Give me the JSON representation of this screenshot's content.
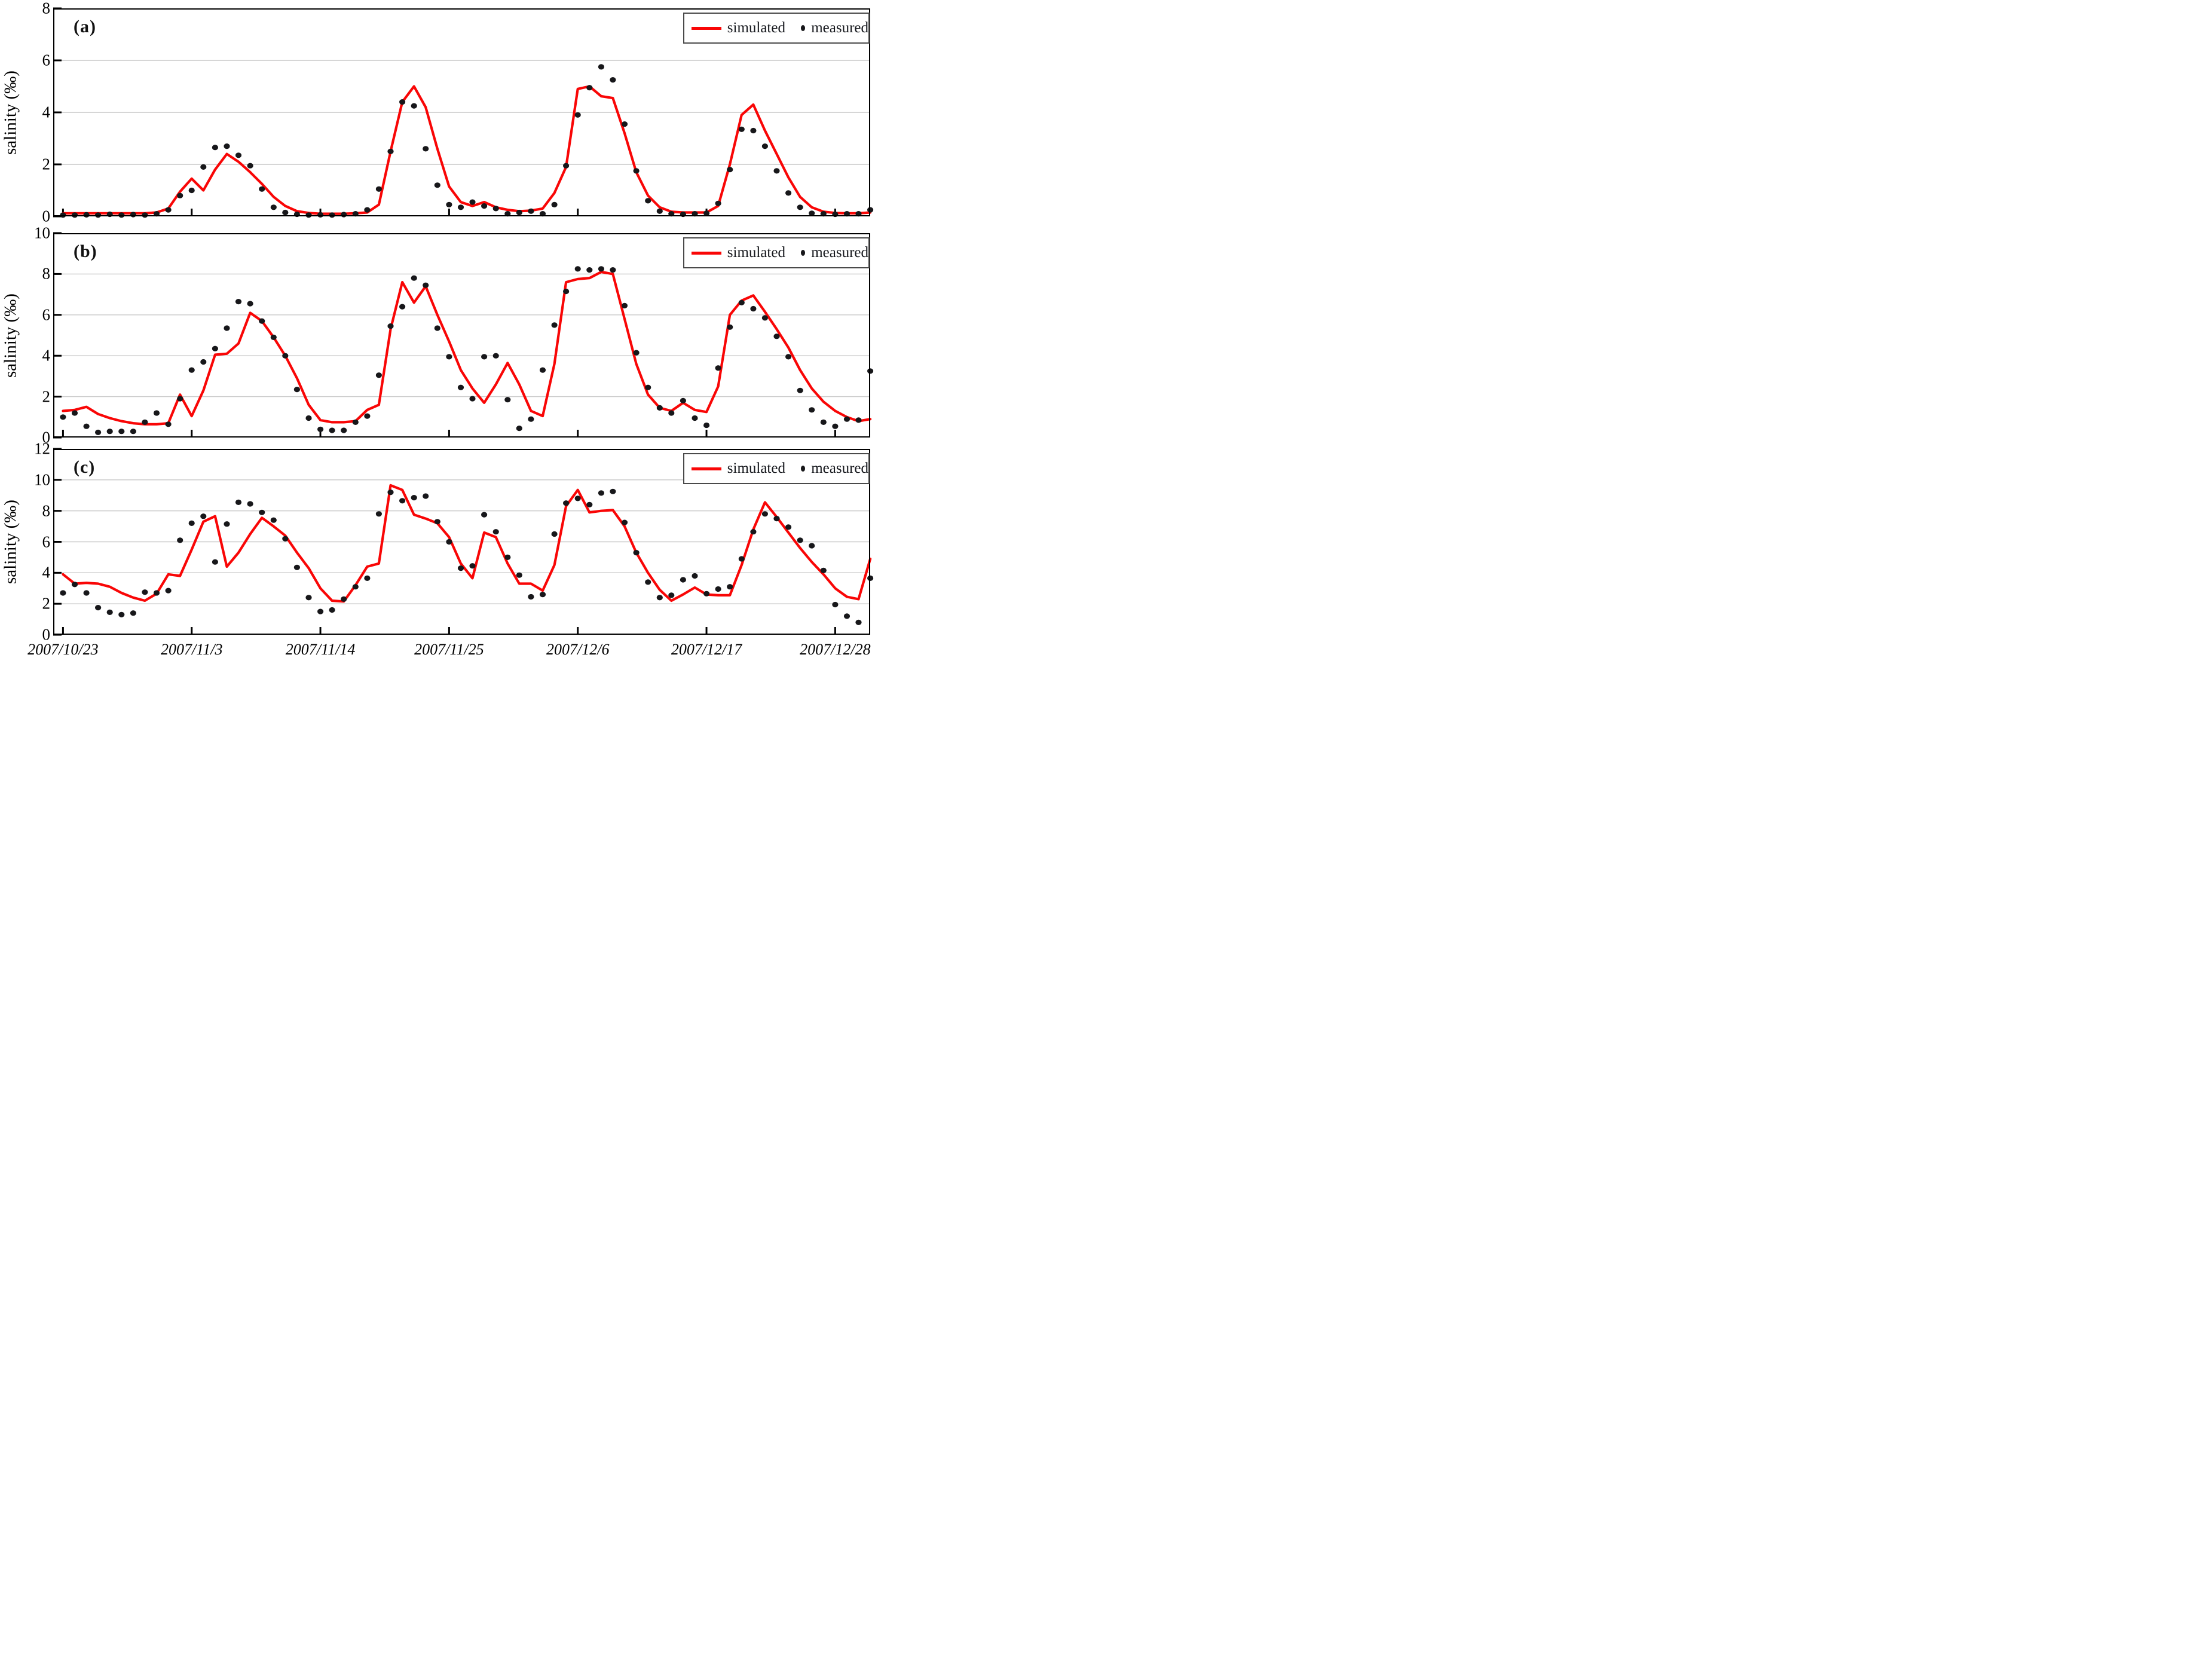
{
  "figure_type": "three-panel salinity time series, simulated line vs measured dots",
  "legend": {
    "simulated": "simulated",
    "measured": "measured"
  },
  "colors": {
    "simulated": "#f90606",
    "measured": "#17171a",
    "grid": "#c9c9c9",
    "axis": "#000000",
    "legend_border": "#4a4a4a",
    "background": "#ffffff"
  },
  "chart_data": {
    "type": "line",
    "ylabel": "salinity  (‰)",
    "x_tick_labels": [
      "2007/10/23",
      "2007/11/3",
      "2007/11/14",
      "2007/11/25",
      "2007/12/6",
      "2007/12/17",
      "2007/12/28"
    ],
    "x_tick_indices": [
      0,
      11,
      22,
      33,
      44,
      55,
      66
    ],
    "n_points": 70,
    "x_start_frac": 0.012,
    "x_step_frac": 0.01432,
    "legend_position": "top-right",
    "grid": "horizontal only, light gray, every 2 units",
    "panels": [
      {
        "label": "(a)",
        "ylim": [
          0,
          8
        ],
        "yticks": [
          0,
          2,
          4,
          6,
          8
        ],
        "series": [
          {
            "name": "simulated",
            "style": "red line",
            "values": [
              0.12,
              0.12,
              0.12,
              0.12,
              0.12,
              0.12,
              0.12,
              0.12,
              0.15,
              0.3,
              0.95,
              1.45,
              1.0,
              1.8,
              2.4,
              2.1,
              1.7,
              1.25,
              0.75,
              0.4,
              0.2,
              0.13,
              0.1,
              0.1,
              0.1,
              0.12,
              0.15,
              0.45,
              2.5,
              4.4,
              5.0,
              4.2,
              2.6,
              1.15,
              0.55,
              0.4,
              0.55,
              0.35,
              0.25,
              0.2,
              0.22,
              0.3,
              0.9,
              1.9,
              4.9,
              5.0,
              4.62,
              4.55,
              3.2,
              1.7,
              0.8,
              0.35,
              0.18,
              0.15,
              0.15,
              0.15,
              0.4,
              2.0,
              3.9,
              4.3,
              3.3,
              2.4,
              1.5,
              0.75,
              0.35,
              0.18,
              0.13,
              0.12,
              0.12,
              0.15
            ]
          },
          {
            "name": "measured",
            "style": "black dots",
            "values": [
              0.05,
              0.05,
              0.06,
              0.05,
              0.08,
              0.05,
              0.07,
              0.05,
              0.1,
              0.25,
              0.8,
              1.0,
              1.9,
              2.65,
              2.7,
              2.35,
              1.95,
              1.05,
              0.35,
              0.15,
              0.08,
              0.05,
              0.06,
              0.05,
              0.07,
              0.1,
              0.25,
              1.05,
              2.5,
              4.4,
              4.25,
              2.6,
              1.2,
              0.45,
              0.35,
              0.55,
              0.4,
              0.3,
              0.1,
              0.15,
              0.2,
              0.1,
              0.45,
              1.95,
              3.9,
              4.95,
              5.75,
              5.25,
              3.55,
              1.75,
              0.6,
              0.2,
              0.1,
              0.08,
              0.1,
              0.12,
              0.5,
              1.8,
              3.35,
              3.3,
              2.7,
              1.75,
              0.9,
              0.35,
              0.12,
              0.1,
              0.08,
              0.1,
              0.1,
              0.25
            ]
          }
        ]
      },
      {
        "label": "(b)",
        "ylim": [
          0,
          10
        ],
        "yticks": [
          0,
          2,
          4,
          6,
          8,
          10
        ],
        "series": [
          {
            "name": "simulated",
            "style": "red line",
            "values": [
              1.3,
              1.35,
              1.5,
              1.15,
              0.95,
              0.8,
              0.7,
              0.65,
              0.65,
              0.7,
              2.1,
              1.05,
              2.3,
              4.05,
              4.1,
              4.6,
              6.1,
              5.7,
              4.9,
              4.0,
              2.9,
              1.6,
              0.85,
              0.75,
              0.75,
              0.8,
              1.35,
              1.6,
              5.3,
              7.6,
              6.6,
              7.4,
              6.0,
              4.7,
              3.3,
              2.4,
              1.7,
              2.6,
              3.65,
              2.6,
              1.3,
              1.05,
              3.6,
              7.6,
              7.75,
              7.8,
              8.1,
              8.0,
              5.8,
              3.6,
              2.1,
              1.45,
              1.3,
              1.7,
              1.35,
              1.25,
              2.5,
              6.0,
              6.7,
              6.95,
              6.15,
              5.3,
              4.4,
              3.3,
              2.4,
              1.75,
              1.3,
              1.0,
              0.8,
              0.9
            ]
          },
          {
            "name": "measured",
            "style": "black dots",
            "values": [
              1.0,
              1.2,
              0.55,
              0.25,
              0.3,
              0.3,
              0.3,
              0.75,
              1.2,
              0.65,
              1.9,
              3.3,
              3.7,
              4.35,
              5.35,
              6.65,
              6.55,
              5.7,
              4.9,
              4.0,
              2.35,
              0.95,
              0.4,
              0.35,
              0.35,
              0.75,
              1.05,
              3.05,
              5.45,
              6.4,
              7.8,
              7.45,
              5.35,
              3.95,
              2.45,
              1.9,
              3.95,
              4.0,
              1.85,
              0.45,
              0.9,
              3.3,
              5.5,
              7.15,
              8.25,
              8.2,
              8.25,
              8.2,
              6.45,
              4.15,
              2.45,
              1.45,
              1.2,
              1.8,
              0.95,
              0.6,
              3.4,
              5.4,
              6.6,
              6.3,
              5.85,
              4.95,
              3.95,
              2.3,
              1.35,
              0.75,
              0.55,
              0.9,
              0.85,
              3.25
            ]
          }
        ]
      },
      {
        "label": "(c)",
        "ylim": [
          0,
          12
        ],
        "yticks": [
          0,
          2,
          4,
          6,
          8,
          10,
          12
        ],
        "series": [
          {
            "name": "simulated",
            "style": "red line",
            "values": [
              3.9,
              3.3,
              3.35,
              3.3,
              3.1,
              2.7,
              2.4,
              2.2,
              2.65,
              3.9,
              3.8,
              5.5,
              7.3,
              7.65,
              4.4,
              5.3,
              6.5,
              7.55,
              7.0,
              6.4,
              5.3,
              4.3,
              3.0,
              2.2,
              2.15,
              3.2,
              4.4,
              4.6,
              9.65,
              9.35,
              7.75,
              7.5,
              7.2,
              6.3,
              4.6,
              3.65,
              6.6,
              6.3,
              4.6,
              3.3,
              3.3,
              2.85,
              4.5,
              8.3,
              9.35,
              7.9,
              8.0,
              8.05,
              7.0,
              5.3,
              4.0,
              2.9,
              2.2,
              2.6,
              3.05,
              2.6,
              2.55,
              2.55,
              4.5,
              6.8,
              8.55,
              7.6,
              6.6,
              5.6,
              4.7,
              3.9,
              3.0,
              2.45,
              2.3,
              4.9
            ]
          },
          {
            "name": "measured",
            "style": "black dots",
            "values": [
              2.7,
              3.25,
              2.7,
              1.75,
              1.45,
              1.3,
              1.4,
              2.75,
              2.7,
              2.85,
              6.1,
              7.2,
              7.65,
              4.7,
              7.15,
              8.55,
              8.45,
              7.9,
              7.4,
              6.2,
              4.35,
              2.4,
              1.5,
              1.6,
              2.3,
              3.1,
              3.65,
              7.8,
              9.2,
              8.65,
              8.85,
              8.95,
              7.3,
              6.0,
              4.3,
              4.45,
              7.75,
              6.65,
              5.0,
              3.85,
              2.45,
              2.6,
              6.5,
              8.5,
              8.8,
              8.4,
              9.15,
              9.25,
              7.25,
              5.3,
              3.4,
              2.4,
              2.55,
              3.55,
              3.8,
              2.65,
              2.95,
              3.1,
              4.9,
              6.65,
              7.8,
              7.5,
              6.95,
              6.1,
              5.75,
              4.15,
              1.95,
              1.2,
              0.8,
              3.65
            ]
          }
        ]
      }
    ]
  },
  "layout_note": "dates shown only under bottom panel; each panel repeats the legend and y-axis label"
}
